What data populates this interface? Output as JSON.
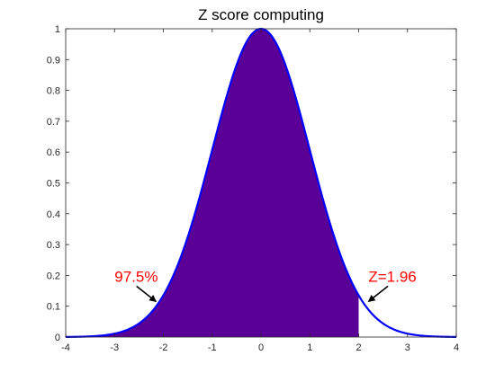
{
  "chart_data": {
    "type": "area",
    "title": "Z score computing",
    "xlabel": "",
    "ylabel": "",
    "xlim": [
      -4,
      4
    ],
    "ylim": [
      0,
      1
    ],
    "x_ticks": [
      -4,
      -3,
      -2,
      -1,
      0,
      1,
      2,
      3,
      4
    ],
    "y_ticks": [
      0,
      0.1,
      0.2,
      0.3,
      0.4,
      0.5,
      0.6,
      0.7,
      0.8,
      0.9,
      1
    ],
    "x_tick_labels": [
      "-4",
      "-3",
      "-2",
      "-1",
      "0",
      "1",
      "2",
      "3",
      "4"
    ],
    "y_tick_labels": [
      "0",
      "0.1",
      "0.2",
      "0.3",
      "0.4",
      "0.5",
      "0.6",
      "0.7",
      "0.8",
      "0.9",
      "1"
    ],
    "series": [
      {
        "name": "curve",
        "function": "exp(-x^2/2)",
        "x_range": [
          -4,
          4
        ],
        "color": "#0000ff"
      }
    ],
    "shaded_region": {
      "x_from": -4,
      "x_to": 2,
      "color": "#5a0096"
    },
    "annotations": [
      {
        "text": "97.5%",
        "color": "#ff0000",
        "text_x": -3.0,
        "text_y": 0.18,
        "arrow_from": [
          -2.55,
          0.165
        ],
        "arrow_to": [
          -2.15,
          0.115
        ]
      },
      {
        "text": "Z=1.96",
        "color": "#ff0000",
        "text_x": 2.2,
        "text_y": 0.18,
        "arrow_from": [
          2.6,
          0.165
        ],
        "arrow_to": [
          2.2,
          0.115
        ]
      }
    ]
  }
}
